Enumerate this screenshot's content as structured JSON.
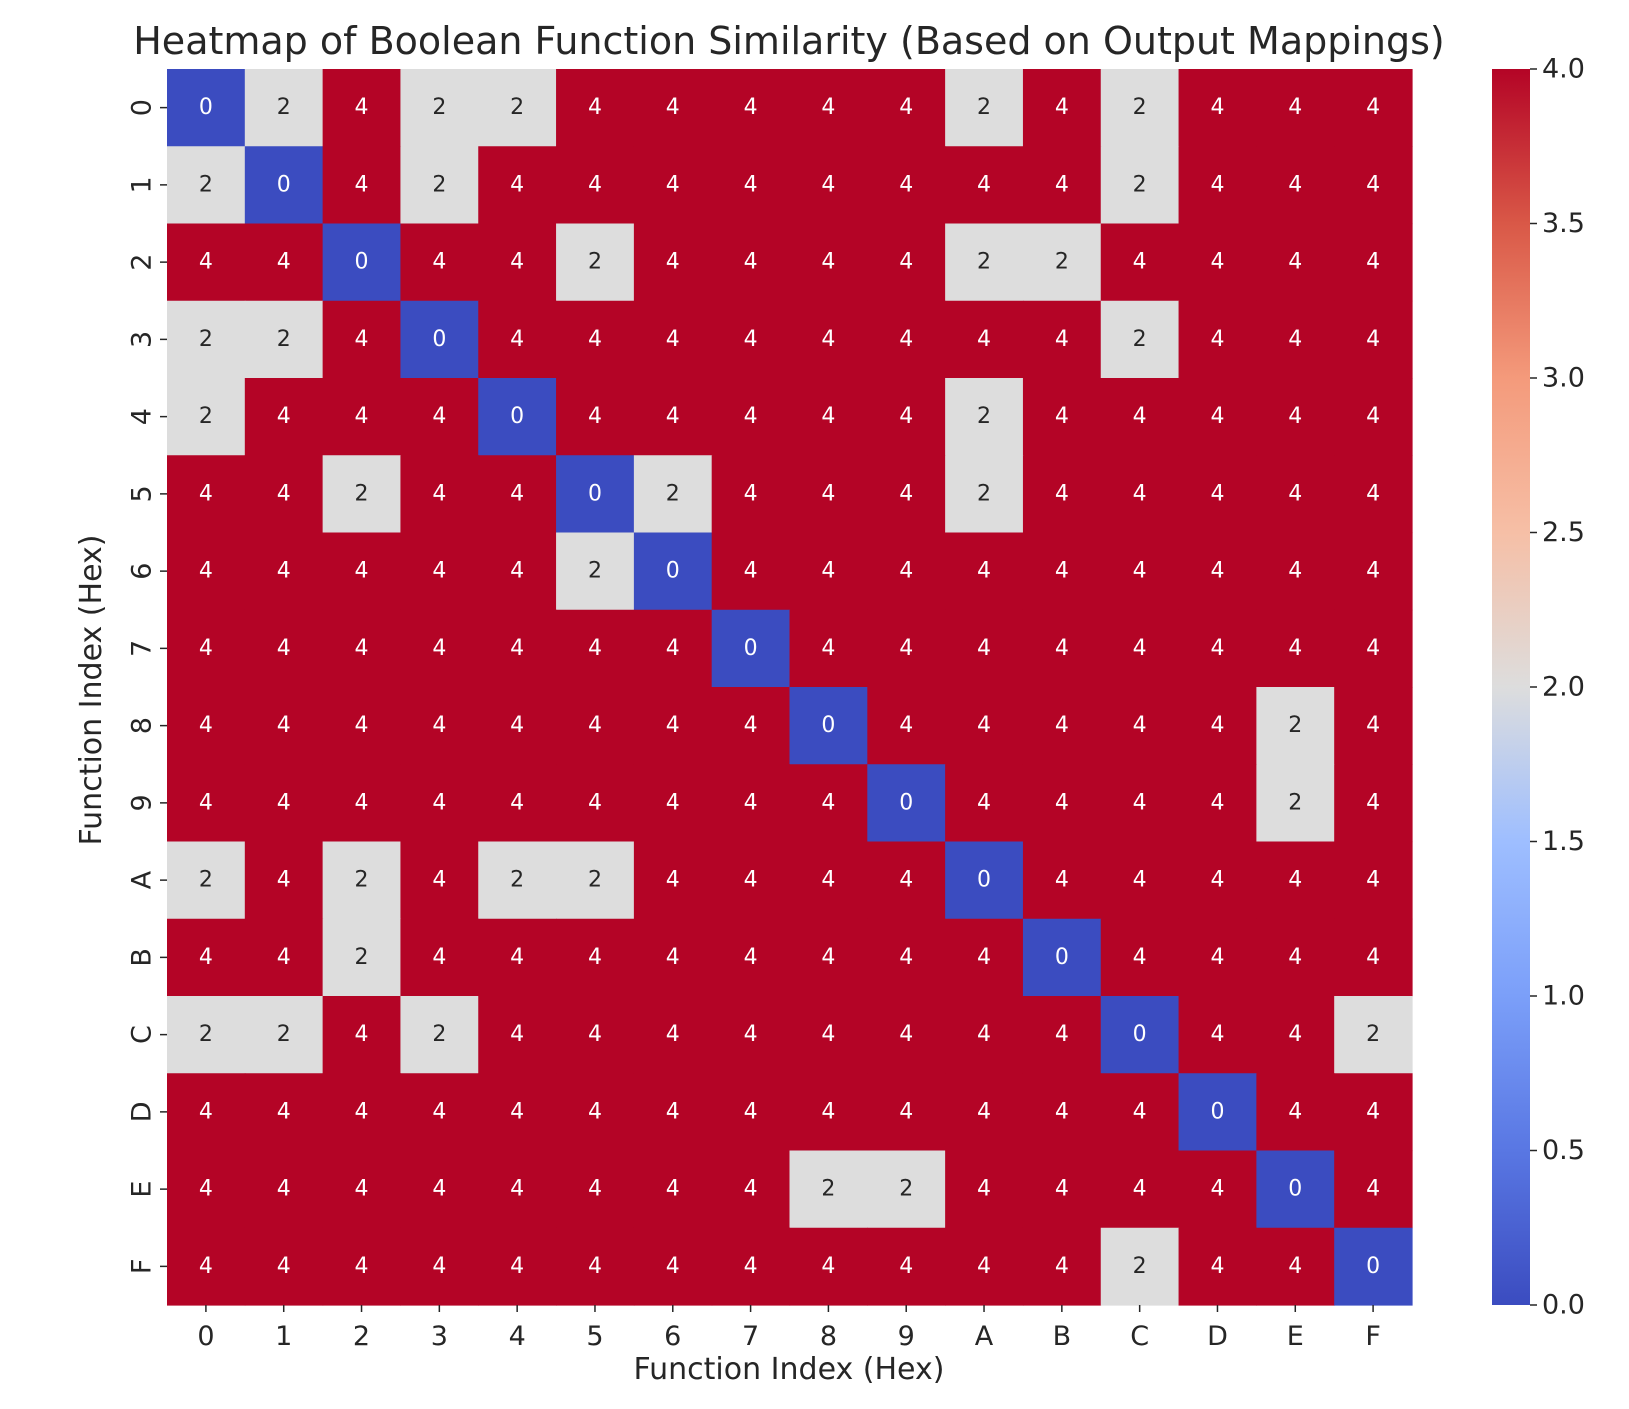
{
  "chart_data": {
    "type": "heatmap",
    "title": "Heatmap of Boolean Function Similarity (Based on Output Mappings)",
    "xlabel": "Function Index (Hex)",
    "ylabel": "Function Index (Hex)",
    "x_categories": [
      "0",
      "1",
      "2",
      "3",
      "4",
      "5",
      "6",
      "7",
      "8",
      "9",
      "A",
      "B",
      "C",
      "D",
      "E",
      "F"
    ],
    "y_categories": [
      "0",
      "1",
      "2",
      "3",
      "4",
      "5",
      "6",
      "7",
      "8",
      "9",
      "A",
      "B",
      "C",
      "D",
      "E",
      "F"
    ],
    "values": [
      [
        0,
        2,
        4,
        2,
        2,
        4,
        4,
        4,
        4,
        4,
        2,
        4,
        2,
        4,
        4,
        4
      ],
      [
        2,
        0,
        4,
        2,
        4,
        4,
        4,
        4,
        4,
        4,
        4,
        4,
        2,
        4,
        4,
        4
      ],
      [
        4,
        4,
        0,
        4,
        4,
        2,
        4,
        4,
        4,
        4,
        2,
        2,
        4,
        4,
        4,
        4
      ],
      [
        2,
        2,
        4,
        0,
        4,
        4,
        4,
        4,
        4,
        4,
        4,
        4,
        2,
        4,
        4,
        4
      ],
      [
        2,
        4,
        4,
        4,
        0,
        4,
        4,
        4,
        4,
        4,
        2,
        4,
        4,
        4,
        4,
        4
      ],
      [
        4,
        4,
        2,
        4,
        4,
        0,
        2,
        4,
        4,
        4,
        2,
        4,
        4,
        4,
        4,
        4
      ],
      [
        4,
        4,
        4,
        4,
        4,
        2,
        0,
        4,
        4,
        4,
        4,
        4,
        4,
        4,
        4,
        4
      ],
      [
        4,
        4,
        4,
        4,
        4,
        4,
        4,
        0,
        4,
        4,
        4,
        4,
        4,
        4,
        4,
        4
      ],
      [
        4,
        4,
        4,
        4,
        4,
        4,
        4,
        4,
        0,
        4,
        4,
        4,
        4,
        4,
        2,
        4
      ],
      [
        4,
        4,
        4,
        4,
        4,
        4,
        4,
        4,
        4,
        0,
        4,
        4,
        4,
        4,
        2,
        4
      ],
      [
        2,
        4,
        2,
        4,
        2,
        2,
        4,
        4,
        4,
        4,
        0,
        4,
        4,
        4,
        4,
        4
      ],
      [
        4,
        4,
        2,
        4,
        4,
        4,
        4,
        4,
        4,
        4,
        4,
        0,
        4,
        4,
        4,
        4
      ],
      [
        2,
        2,
        4,
        2,
        4,
        4,
        4,
        4,
        4,
        4,
        4,
        4,
        0,
        4,
        4,
        2
      ],
      [
        4,
        4,
        4,
        4,
        4,
        4,
        4,
        4,
        4,
        4,
        4,
        4,
        4,
        0,
        4,
        4
      ],
      [
        4,
        4,
        4,
        4,
        4,
        4,
        4,
        4,
        2,
        2,
        4,
        4,
        4,
        4,
        0,
        4
      ],
      [
        4,
        4,
        4,
        4,
        4,
        4,
        4,
        4,
        4,
        4,
        4,
        4,
        2,
        4,
        4,
        0
      ]
    ],
    "value_range": [
      0,
      4
    ],
    "colormap": "coolwarm",
    "colormap_stops": [
      "#3b4cc0",
      "#dddddd",
      "#b40426"
    ],
    "colorbar_ticks": [
      "0.0",
      "0.5",
      "1.0",
      "1.5",
      "2.0",
      "2.5",
      "3.0",
      "3.5",
      "4.0"
    ],
    "annotations": true,
    "grid": false,
    "legend": "colorbar-right"
  }
}
